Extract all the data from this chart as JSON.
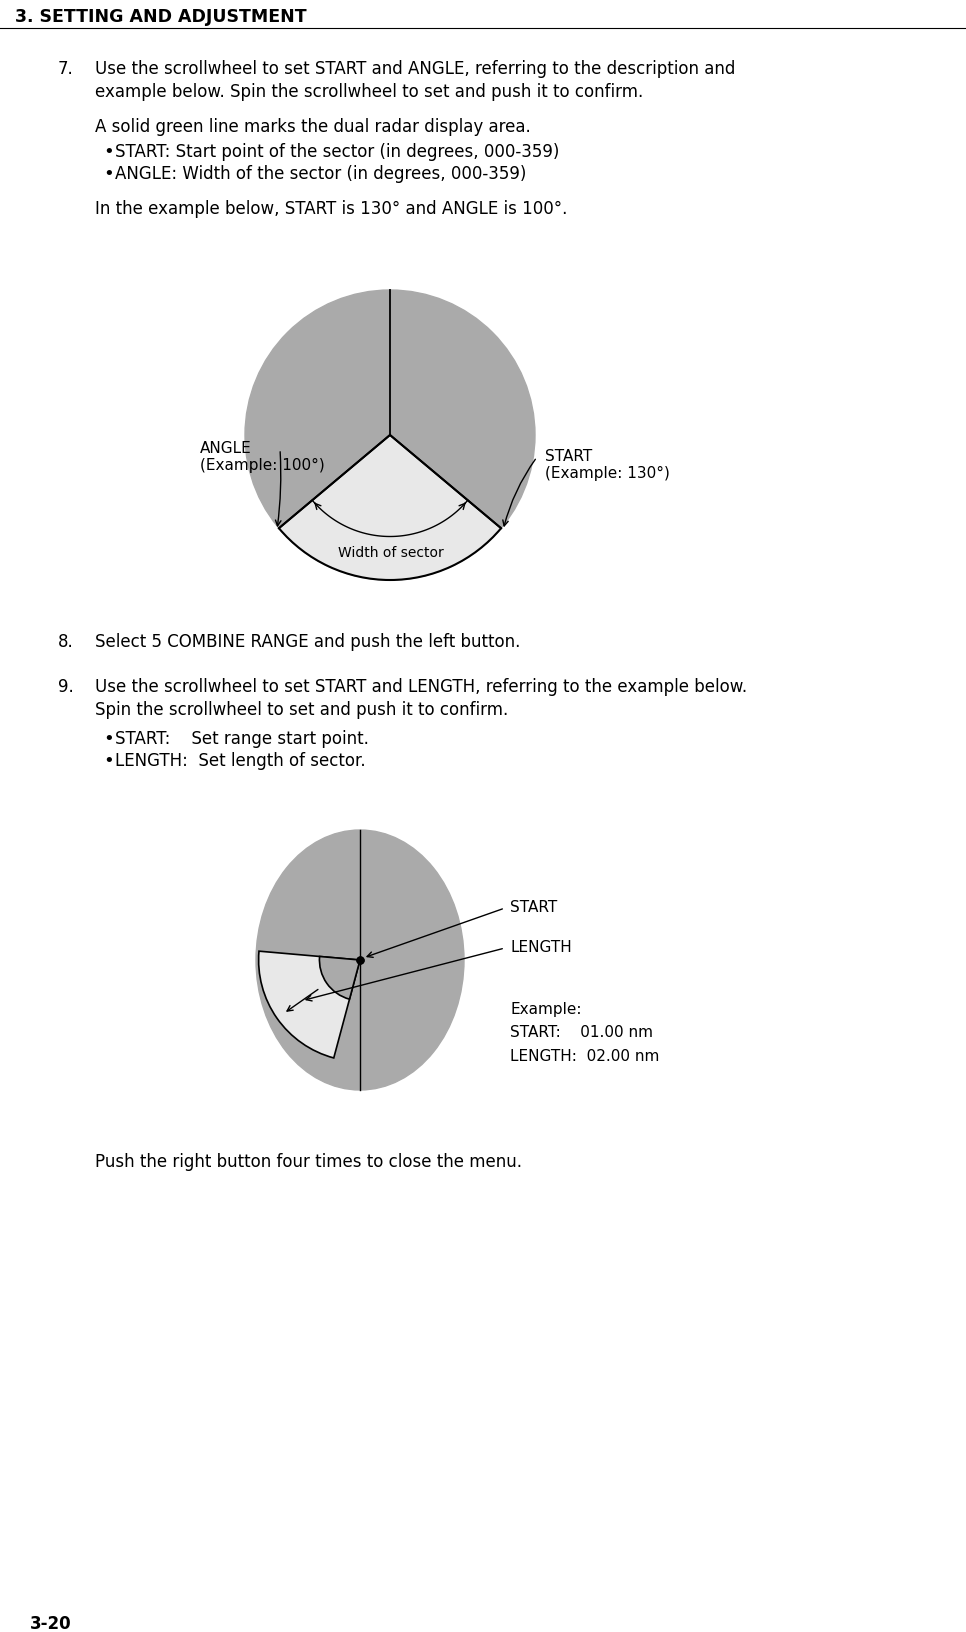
{
  "title": "3. SETTING AND ADJUSTMENT",
  "page_number": "3-20",
  "bg_color": "#ffffff",
  "text_color": "#000000",
  "gray_color": "#aaaaaa",
  "light_color": "#e8e8e8",
  "item7_line1": "Use the scrollwheel to set START and ANGLE, referring to the description and",
  "item7_line2": "example below. Spin the scrollwheel to set and push it to confirm.",
  "item7_sub": "A solid green line marks the dual radar display area.",
  "bullet1_7": "START: Start point of the sector (in degrees, 000-359)",
  "bullet2_7": "ANGLE: Width of the sector (in degrees, 000-359)",
  "item7_ex": "In the example below, START is 130° and ANGLE is 100°.",
  "d1_angle_label": "ANGLE\n(Example: 100°)",
  "d1_start_label": "START\n(Example: 130°)",
  "d1_sector_label": "Width of sector",
  "item8": "Select 5 COMBINE RANGE and push the left button.",
  "item9_line1": "Use the scrollwheel to set START and LENGTH, referring to the example below.",
  "item9_line2": "Spin the scrollwheel to set and push it to confirm.",
  "bullet1_9": "START:    Set range start point.",
  "bullet2_9": "LENGTH:  Set length of sector.",
  "d2_start_label": "START",
  "d2_length_label": "LENGTH",
  "d2_example": "Example:\nSTART:    01.00 nm\nLENGTH:  02.00 nm",
  "footer": "Push the right button four times to close the menu."
}
